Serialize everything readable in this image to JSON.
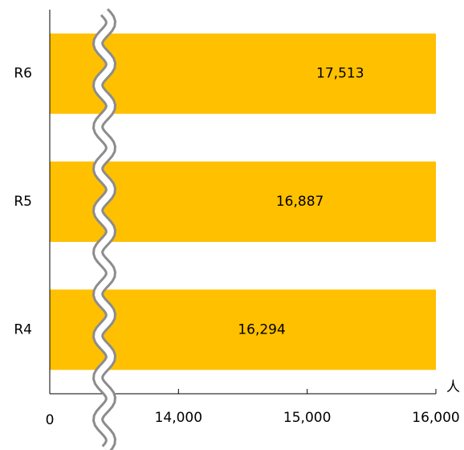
{
  "chart_data": {
    "type": "bar",
    "orientation": "horizontal",
    "categories": [
      "R6",
      "R5",
      "R4"
    ],
    "values": [
      17513,
      16887,
      16294
    ],
    "value_labels": [
      "17,513",
      "16,887",
      "16,294"
    ],
    "color": "#ffc000",
    "xlim": [
      0,
      16000
    ],
    "xticks": [
      0,
      {
        "value": 14000,
        "label": "14,000"
      },
      {
        "value": 15000,
        "label": "15,000"
      },
      {
        "value": 16000,
        "label": "16,000"
      }
    ],
    "x_label": "人",
    "axis_break": true
  }
}
